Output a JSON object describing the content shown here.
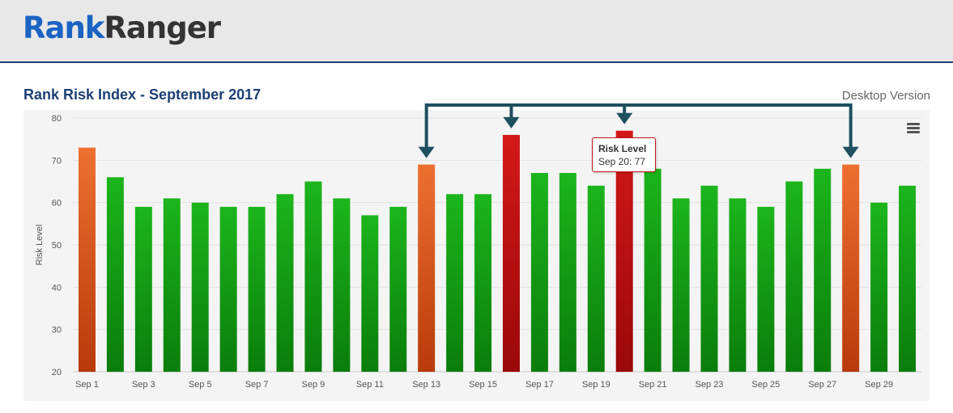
{
  "brand": {
    "part1": "Rank",
    "part2": "Ranger"
  },
  "title": "Rank Risk Index - September 2017",
  "version_label": "Desktop Version",
  "tooltip": {
    "title": "Risk Level",
    "text": "Sep 20: 77"
  },
  "colors": {
    "low_top": "#1cb51c",
    "low_bottom": "#0a7d0a",
    "medium_top": "#ee7030",
    "medium_bottom": "#b83a0a",
    "high_top": "#d41818",
    "high_bottom": "#9a0808",
    "title": "#1c3f74",
    "annotation_arrow": "#1e5060"
  },
  "chart_data": {
    "type": "bar",
    "title": "Rank Risk Index - September 2017",
    "xlabel": "",
    "ylabel": "Risk Level",
    "ylim": [
      20,
      80
    ],
    "yticks": [
      20,
      30,
      40,
      50,
      60,
      70,
      80
    ],
    "grid": true,
    "x": [
      "Sep 1",
      "Sep 2",
      "Sep 3",
      "Sep 4",
      "Sep 5",
      "Sep 6",
      "Sep 7",
      "Sep 8",
      "Sep 9",
      "Sep 10",
      "Sep 11",
      "Sep 12",
      "Sep 13",
      "Sep 14",
      "Sep 15",
      "Sep 16",
      "Sep 17",
      "Sep 18",
      "Sep 19",
      "Sep 20",
      "Sep 21",
      "Sep 22",
      "Sep 23",
      "Sep 24",
      "Sep 25",
      "Sep 26",
      "Sep 27",
      "Sep 28",
      "Sep 29",
      "Sep 30"
    ],
    "xtick_labels": [
      "Sep 1",
      "Sep 3",
      "Sep 5",
      "Sep 7",
      "Sep 9",
      "Sep 11",
      "Sep 13",
      "Sep 15",
      "Sep 17",
      "Sep 19",
      "Sep 21",
      "Sep 23",
      "Sep 25",
      "Sep 27",
      "Sep 29"
    ],
    "values": [
      73,
      66,
      59,
      61,
      60,
      59,
      59,
      62,
      65,
      61,
      57,
      59,
      69,
      62,
      62,
      76,
      67,
      67,
      64,
      77,
      68,
      61,
      64,
      61,
      59,
      65,
      68,
      69,
      60,
      64
    ],
    "levels": [
      "medium",
      "low",
      "low",
      "low",
      "low",
      "low",
      "low",
      "low",
      "low",
      "low",
      "low",
      "low",
      "medium",
      "low",
      "low",
      "high",
      "low",
      "low",
      "low",
      "high",
      "low",
      "low",
      "low",
      "low",
      "low",
      "low",
      "low",
      "medium",
      "low",
      "low"
    ],
    "highlighted": [
      "Sep 13",
      "Sep 16",
      "Sep 20",
      "Sep 28"
    ]
  }
}
